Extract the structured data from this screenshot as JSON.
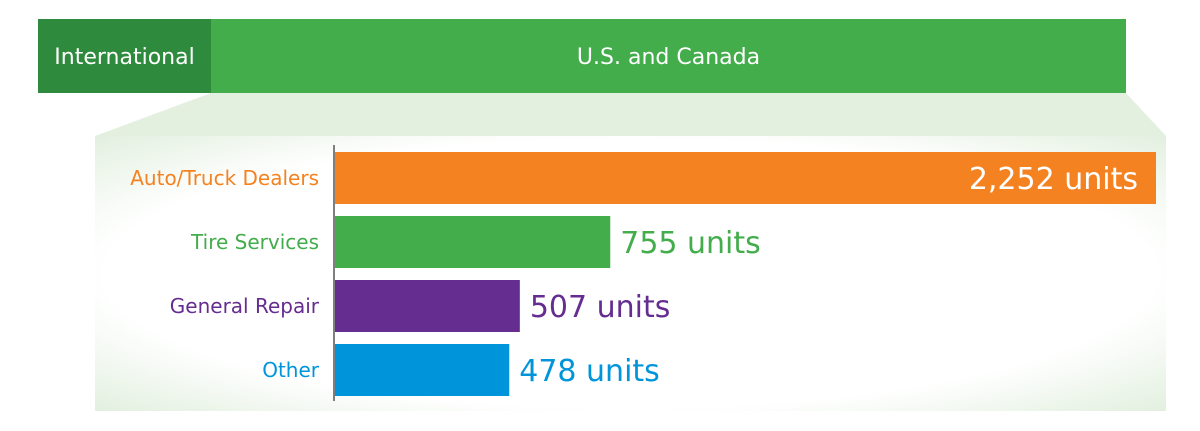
{
  "segments": [
    {
      "label": "International",
      "color": "#2e8b3d"
    },
    {
      "label": "U.S. and Canada",
      "color": "#43ac4b"
    }
  ],
  "panel_color": "#e3f0e0",
  "chart_data": {
    "type": "bar",
    "orientation": "horizontal",
    "categories": [
      "Auto/Truck Dealers",
      "Tire Services",
      "General Repair",
      "Other"
    ],
    "values": [
      2252,
      755,
      507,
      478
    ],
    "value_labels": [
      "2,252 units",
      "755 units",
      "507 units",
      "478 units"
    ],
    "unit": "units",
    "colors": [
      "#f58220",
      "#43ac4b",
      "#652d90",
      "#0095da"
    ],
    "title": "",
    "xlabel": "",
    "ylabel": "",
    "xlim": [
      0,
      2252
    ],
    "grid": false,
    "legend": "none"
  }
}
